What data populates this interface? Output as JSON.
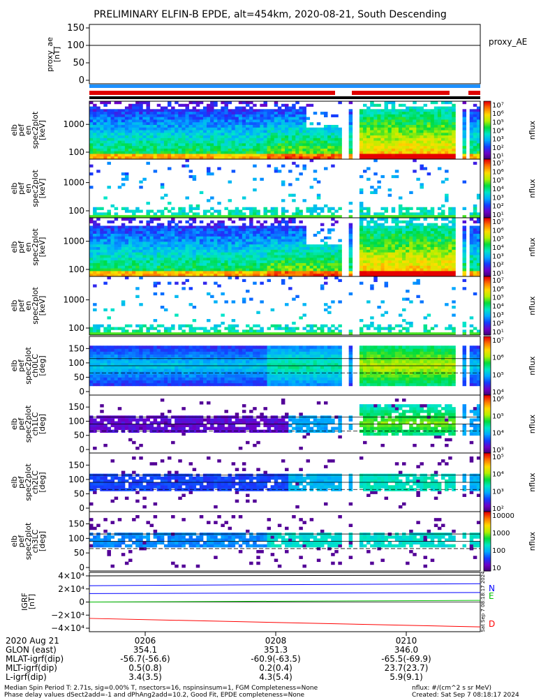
{
  "title": "PRELIMINARY ELFIN-B EPDE, alt=454km, 2020-08-21, South Descending",
  "proxy_panel": {
    "ylabel": [
      "proxy_ae",
      "[nT]"
    ],
    "ticks": [
      "150",
      "100",
      "50",
      "0"
    ],
    "legend": "proxy_AE",
    "value": 100
  },
  "energy_panels": [
    {
      "ylabel": [
        "elb",
        "pef",
        "en",
        "spec2plot",
        "[keV]"
      ],
      "ticks": [
        "1000",
        "100"
      ],
      "cbar_ticks": [
        "10⁷",
        "10⁶",
        "10⁵",
        "10⁴",
        "10³",
        "10²",
        "10¹"
      ],
      "cbar_label": "nflux"
    },
    {
      "ylabel": [
        "elb",
        "pef",
        "en",
        "spec2plot",
        "[keV]"
      ],
      "ticks": [
        "1000",
        "100"
      ],
      "cbar_ticks": [
        "10⁷",
        "10⁶",
        "10⁵",
        "10⁴",
        "10³",
        "10²",
        "10¹"
      ],
      "cbar_label": "nflux"
    },
    {
      "ylabel": [
        "elb",
        "pef",
        "en",
        "spec2plot",
        "[keV]"
      ],
      "ticks": [
        "1000",
        "100"
      ],
      "cbar_ticks": [
        "10⁷",
        "10⁶",
        "10⁵",
        "10⁴",
        "10³",
        "10²",
        "10¹"
      ],
      "cbar_label": "nflux"
    },
    {
      "ylabel": [
        "elb",
        "pef",
        "en",
        "spec2plot",
        "[keV]"
      ],
      "ticks": [
        "1000",
        "100"
      ],
      "cbar_ticks": [
        "10⁷",
        "10⁶",
        "10⁵",
        "10⁴",
        "10³",
        "10²",
        "10¹"
      ],
      "cbar_label": "nflux"
    }
  ],
  "pitch_panels": [
    {
      "ylabel": [
        "elb",
        "pef",
        "spec2plot",
        "ch0LC",
        "[deg]"
      ],
      "ticks": [
        "150",
        "100",
        "50",
        "0"
      ],
      "cbar_ticks": [
        "10⁷",
        "10⁶",
        "10⁵",
        "10⁴"
      ],
      "cbar_label": "nflux"
    },
    {
      "ylabel": [
        "elb",
        "pef",
        "spec2plot",
        "ch1LC",
        "[deg]"
      ],
      "ticks": [
        "150",
        "100",
        "50",
        "0"
      ],
      "cbar_ticks": [
        "10⁶",
        "10⁵",
        "10⁴",
        "10³"
      ],
      "cbar_label": "nflux"
    },
    {
      "ylabel": [
        "elb",
        "pef",
        "spec2plot",
        "ch2LC",
        "[deg]"
      ],
      "ticks": [
        "150",
        "100",
        "50",
        "0"
      ],
      "cbar_ticks": [
        "10⁵",
        "10⁴",
        "10³",
        "10²"
      ],
      "cbar_label": "nflux"
    },
    {
      "ylabel": [
        "elb",
        "pef",
        "spec2plot",
        "ch3LC",
        "[deg]"
      ],
      "ticks": [
        "150",
        "100",
        "50",
        "0"
      ],
      "cbar_ticks": [
        "10000",
        "1000",
        "100",
        "10"
      ],
      "cbar_label": "nflux"
    }
  ],
  "igrf_panel": {
    "ylabel": [
      "IGRF",
      "[nT]"
    ],
    "ticks": [
      "4×10⁴",
      "2×10⁴",
      "0",
      "−2×10⁴",
      "−4×10⁴"
    ],
    "components": [
      {
        "name": "N",
        "color": "#0000ff"
      },
      {
        "name": "E",
        "color": "#00c000"
      },
      {
        "name": "D",
        "color": "#ff0000"
      }
    ],
    "side_note": "Sat Sep  7 08:18:17 2024"
  },
  "time_axis": {
    "rows": [
      [
        "2020 Aug 21",
        "0206",
        "0208",
        "0210"
      ],
      [
        "GLON (east)",
        "354.1",
        "351.3",
        "346.0"
      ],
      [
        "MLAT-igrf(dip)",
        "-56.7(-56.6)",
        "-60.9(-63.5)",
        "-65.5(-69.9)"
      ],
      [
        "MLT-igrf(dip)",
        "0.5(0.8)",
        "0.2(0.4)",
        "23.7(23.7)"
      ],
      [
        "L-igrf(dip)",
        "3.4(3.5)",
        "4.3(5.4)",
        "5.9(9.1)"
      ]
    ]
  },
  "footer": {
    "line1_left": "Median Spin Period T: 2.71s, sig=0.00% T, nsectors=16, nspinsinsum=1, FGM Completeness=None",
    "line2_left": "Phase delay values dSect2add=-1 and dPhAng2add=10.2, Good Fit, EPDE completeness=None",
    "line1_right": "nflux: #/(cm^2 s sr MeV)",
    "line2_right": "Created: Sat Sep  7 08:18:17 2024"
  },
  "chart_data": {
    "type": "heatmap",
    "title": "PRELIMINARY ELFIN-B EPDE, alt=454km, 2020-08-21, South Descending",
    "x_ticks": [
      "0206",
      "0208",
      "0210"
    ],
    "proxy_ae": {
      "ylim": [
        0,
        150
      ],
      "value": 100
    },
    "energy_ylim_keV": [
      60,
      5000
    ],
    "energy_yscale": "log",
    "pitch_ylim_deg": [
      0,
      180
    ],
    "pitch_reference_lines_deg": [
      65,
      90,
      115
    ],
    "igrf_ylim_nT": [
      -40000,
      40000
    ],
    "igrf_series": [
      {
        "name": "N",
        "values": [
          25000,
          28000
        ]
      },
      {
        "name": "N",
        "values": [
          13000,
          14500
        ]
      },
      {
        "name": "E",
        "values": [
          0,
          2500
        ]
      },
      {
        "name": "D",
        "values": [
          -25000,
          -38000
        ]
      }
    ],
    "colorbar_label": "nflux",
    "colorscale": "rainbow (purple→blue→green→yellow→red), log",
    "grid": false
  }
}
